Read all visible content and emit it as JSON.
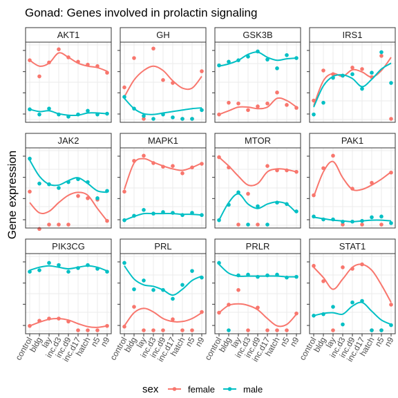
{
  "chart_data": {
    "type": "scatter",
    "title": "Gonad: Genes involved in prolactin signaling",
    "xlabel": "",
    "ylabel": "Gene expression",
    "categories": [
      "control",
      "bldg",
      "lay",
      "inc.d3",
      "inc.d9",
      "inc.d17",
      "hatch",
      "n5",
      "n9"
    ],
    "series_names": [
      "female",
      "male"
    ],
    "legend": {
      "title": "sex",
      "position": "bottom",
      "items": [
        "female",
        "male"
      ]
    },
    "colors": {
      "female": "#F8766D",
      "male": "#00BFC4",
      "grid": "#EBEBEB",
      "border": "#333333"
    },
    "grid": true,
    "facets": [
      {
        "name": "AKT1",
        "female": [
          0.8,
          0.58,
          0.77,
          0.95,
          0.84,
          0.78,
          0.74,
          0.72,
          0.63
        ],
        "male": [
          0.13,
          0.06,
          0.14,
          0.06,
          0.03,
          0.06,
          0.11,
          0.06,
          0.07
        ],
        "female_fit": [
          0.8,
          0.72,
          0.76,
          0.9,
          0.84,
          0.76,
          0.72,
          0.7,
          0.65
        ],
        "male_fit": [
          0.13,
          0.1,
          0.11,
          0.07,
          0.05,
          0.05,
          0.08,
          0.08,
          0.07
        ]
      },
      {
        "name": "GH",
        "female": [
          0.43,
          0.83,
          0.0,
          0.96,
          0.53,
          0.49,
          0.0,
          0.0,
          0.65
        ],
        "male": [
          0.3,
          0.14,
          0.04,
          0.0,
          0.06,
          0.02,
          0.0,
          0.0,
          0.12
        ],
        "female_fit": [
          0.3,
          0.53,
          0.66,
          0.72,
          0.66,
          0.52,
          0.42,
          0.42,
          0.58
        ],
        "male_fit": [
          0.28,
          0.14,
          0.07,
          0.06,
          0.08,
          0.1,
          0.12,
          0.14,
          0.15
        ]
      },
      {
        "name": "GSK3B",
        "female": [
          0.06,
          0.22,
          0.21,
          0.12,
          0.17,
          0.21,
          0.36,
          0.19,
          0.15
        ],
        "male": [
          0.73,
          0.78,
          0.8,
          0.85,
          0.92,
          0.81,
          0.69,
          0.87,
          0.83
        ],
        "female_fit": [
          0.06,
          0.11,
          0.16,
          0.16,
          0.14,
          0.16,
          0.28,
          0.25,
          0.16
        ],
        "male_fit": [
          0.72,
          0.75,
          0.8,
          0.88,
          0.91,
          0.84,
          0.8,
          0.82,
          0.83
        ]
      },
      {
        "name": "IRS1",
        "female": [
          0.25,
          0.66,
          0.61,
          0.59,
          0.7,
          0.68,
          0.57,
          0.86,
          0.0
        ],
        "male": [
          0.06,
          0.22,
          0.56,
          0.59,
          0.61,
          0.41,
          0.63,
          0.91,
          0.49
        ],
        "female_fit": [
          0.18,
          0.52,
          0.62,
          0.58,
          0.67,
          0.64,
          0.57,
          0.66,
          0.84
        ],
        "male_fit": [
          0.16,
          0.45,
          0.58,
          0.6,
          0.55,
          0.44,
          0.54,
          0.68,
          0.76
        ]
      },
      {
        "name": "JAK2",
        "female": [
          0.45,
          -0.06,
          0.0,
          0.0,
          0.0,
          0.39,
          0.36,
          0.34,
          0.05
        ],
        "male": [
          0.9,
          0.56,
          0.55,
          0.5,
          0.58,
          0.62,
          0.58,
          0.36,
          0.46
        ],
        "female_fit": [
          0.3,
          0.16,
          0.18,
          0.3,
          0.4,
          0.44,
          0.4,
          0.22,
          0.05
        ],
        "male_fit": [
          0.88,
          0.66,
          0.55,
          0.54,
          0.6,
          0.64,
          0.56,
          0.46,
          0.44
        ]
      },
      {
        "name": "MAPK1",
        "female": [
          0.45,
          0.87,
          0.94,
          0.84,
          0.79,
          0.8,
          0.7,
          0.78,
          0.83
        ],
        "male": [
          0.06,
          0.12,
          0.2,
          0.15,
          0.17,
          0.16,
          0.13,
          0.16,
          0.13
        ],
        "female_fit": [
          0.48,
          0.84,
          0.9,
          0.85,
          0.8,
          0.76,
          0.74,
          0.78,
          0.84
        ],
        "male_fit": [
          0.06,
          0.11,
          0.15,
          0.15,
          0.15,
          0.15,
          0.14,
          0.14,
          0.13
        ]
      },
      {
        "name": "MTOR",
        "female": [
          0.92,
          0.78,
          0.0,
          0.42,
          0.0,
          0.8,
          0.74,
          0.74,
          0.72
        ],
        "male": [
          0.06,
          0.27,
          0.44,
          0.0,
          0.25,
          0.0,
          0.3,
          0.28,
          0.18
        ],
        "female_fit": [
          0.92,
          0.8,
          0.66,
          0.54,
          0.56,
          0.72,
          0.76,
          0.75,
          0.72
        ],
        "male_fit": [
          0.06,
          0.3,
          0.42,
          0.28,
          0.22,
          0.28,
          0.31,
          0.28,
          0.16
        ]
      },
      {
        "name": "PAK1",
        "female": [
          0.4,
          0.77,
          0.94,
          0.0,
          0.49,
          0.0,
          0.57,
          0.0,
          0.71
        ],
        "male": [
          0.11,
          0.07,
          0.07,
          0.04,
          0.04,
          0.05,
          0.1,
          0.11,
          0.02
        ],
        "female_fit": [
          0.38,
          0.72,
          0.86,
          0.64,
          0.48,
          0.48,
          0.54,
          0.62,
          0.72
        ],
        "male_fit": [
          0.1,
          0.08,
          0.06,
          0.05,
          0.04,
          0.05,
          0.06,
          0.06,
          0.05
        ]
      },
      {
        "name": "PIK3CG",
        "female": [
          0.06,
          0.13,
          0.16,
          0.16,
          0.12,
          0.0,
          0.0,
          0.0,
          0.06
        ],
        "male": [
          0.8,
          0.82,
          0.92,
          0.89,
          0.8,
          0.85,
          0.89,
          0.84,
          0.8
        ],
        "female_fit": [
          0.06,
          0.11,
          0.15,
          0.16,
          0.14,
          0.09,
          0.05,
          0.04,
          0.06
        ],
        "male_fit": [
          0.82,
          0.86,
          0.88,
          0.86,
          0.84,
          0.86,
          0.88,
          0.86,
          0.81
        ]
      },
      {
        "name": "PRL",
        "female": [
          0.05,
          0.32,
          0.0,
          0.0,
          0.0,
          0.15,
          0.0,
          0.0,
          0.25
        ],
        "male": [
          0.92,
          0.56,
          0.68,
          0.55,
          0.55,
          0.43,
          0.62,
          0.81,
          0.72
        ],
        "female_fit": [
          0.06,
          0.24,
          0.3,
          0.25,
          0.16,
          0.12,
          0.12,
          0.16,
          0.24
        ],
        "male_fit": [
          0.88,
          0.7,
          0.62,
          0.6,
          0.55,
          0.48,
          0.56,
          0.68,
          0.74
        ]
      },
      {
        "name": "PRLR",
        "female": [
          0.24,
          0.35,
          0.55,
          0.0,
          0.31,
          0.0,
          0.0,
          0.0,
          0.23
        ],
        "male": [
          0.92,
          0.0,
          0.75,
          0.76,
          0.73,
          0.75,
          0.76,
          0.72,
          0.73
        ],
        "female_fit": [
          0.24,
          0.34,
          0.36,
          0.34,
          0.28,
          0.16,
          0.06,
          0.08,
          0.22
        ],
        "male_fit": [
          0.9,
          0.78,
          0.74,
          0.74,
          0.74,
          0.74,
          0.74,
          0.73,
          0.73
        ]
      },
      {
        "name": "STAT1",
        "female": [
          0.88,
          0.67,
          0.0,
          0.86,
          0.84,
          0.9,
          0.0,
          0.0,
          0.35
        ],
        "male": [
          0.2,
          0.22,
          0.32,
          0.08,
          0.38,
          0.4,
          0.0,
          0.0,
          0.07
        ],
        "female_fit": [
          0.86,
          0.72,
          0.56,
          0.7,
          0.86,
          0.9,
          0.82,
          0.62,
          0.38
        ],
        "male_fit": [
          0.2,
          0.23,
          0.24,
          0.22,
          0.33,
          0.38,
          0.26,
          0.14,
          0.08
        ]
      }
    ]
  }
}
